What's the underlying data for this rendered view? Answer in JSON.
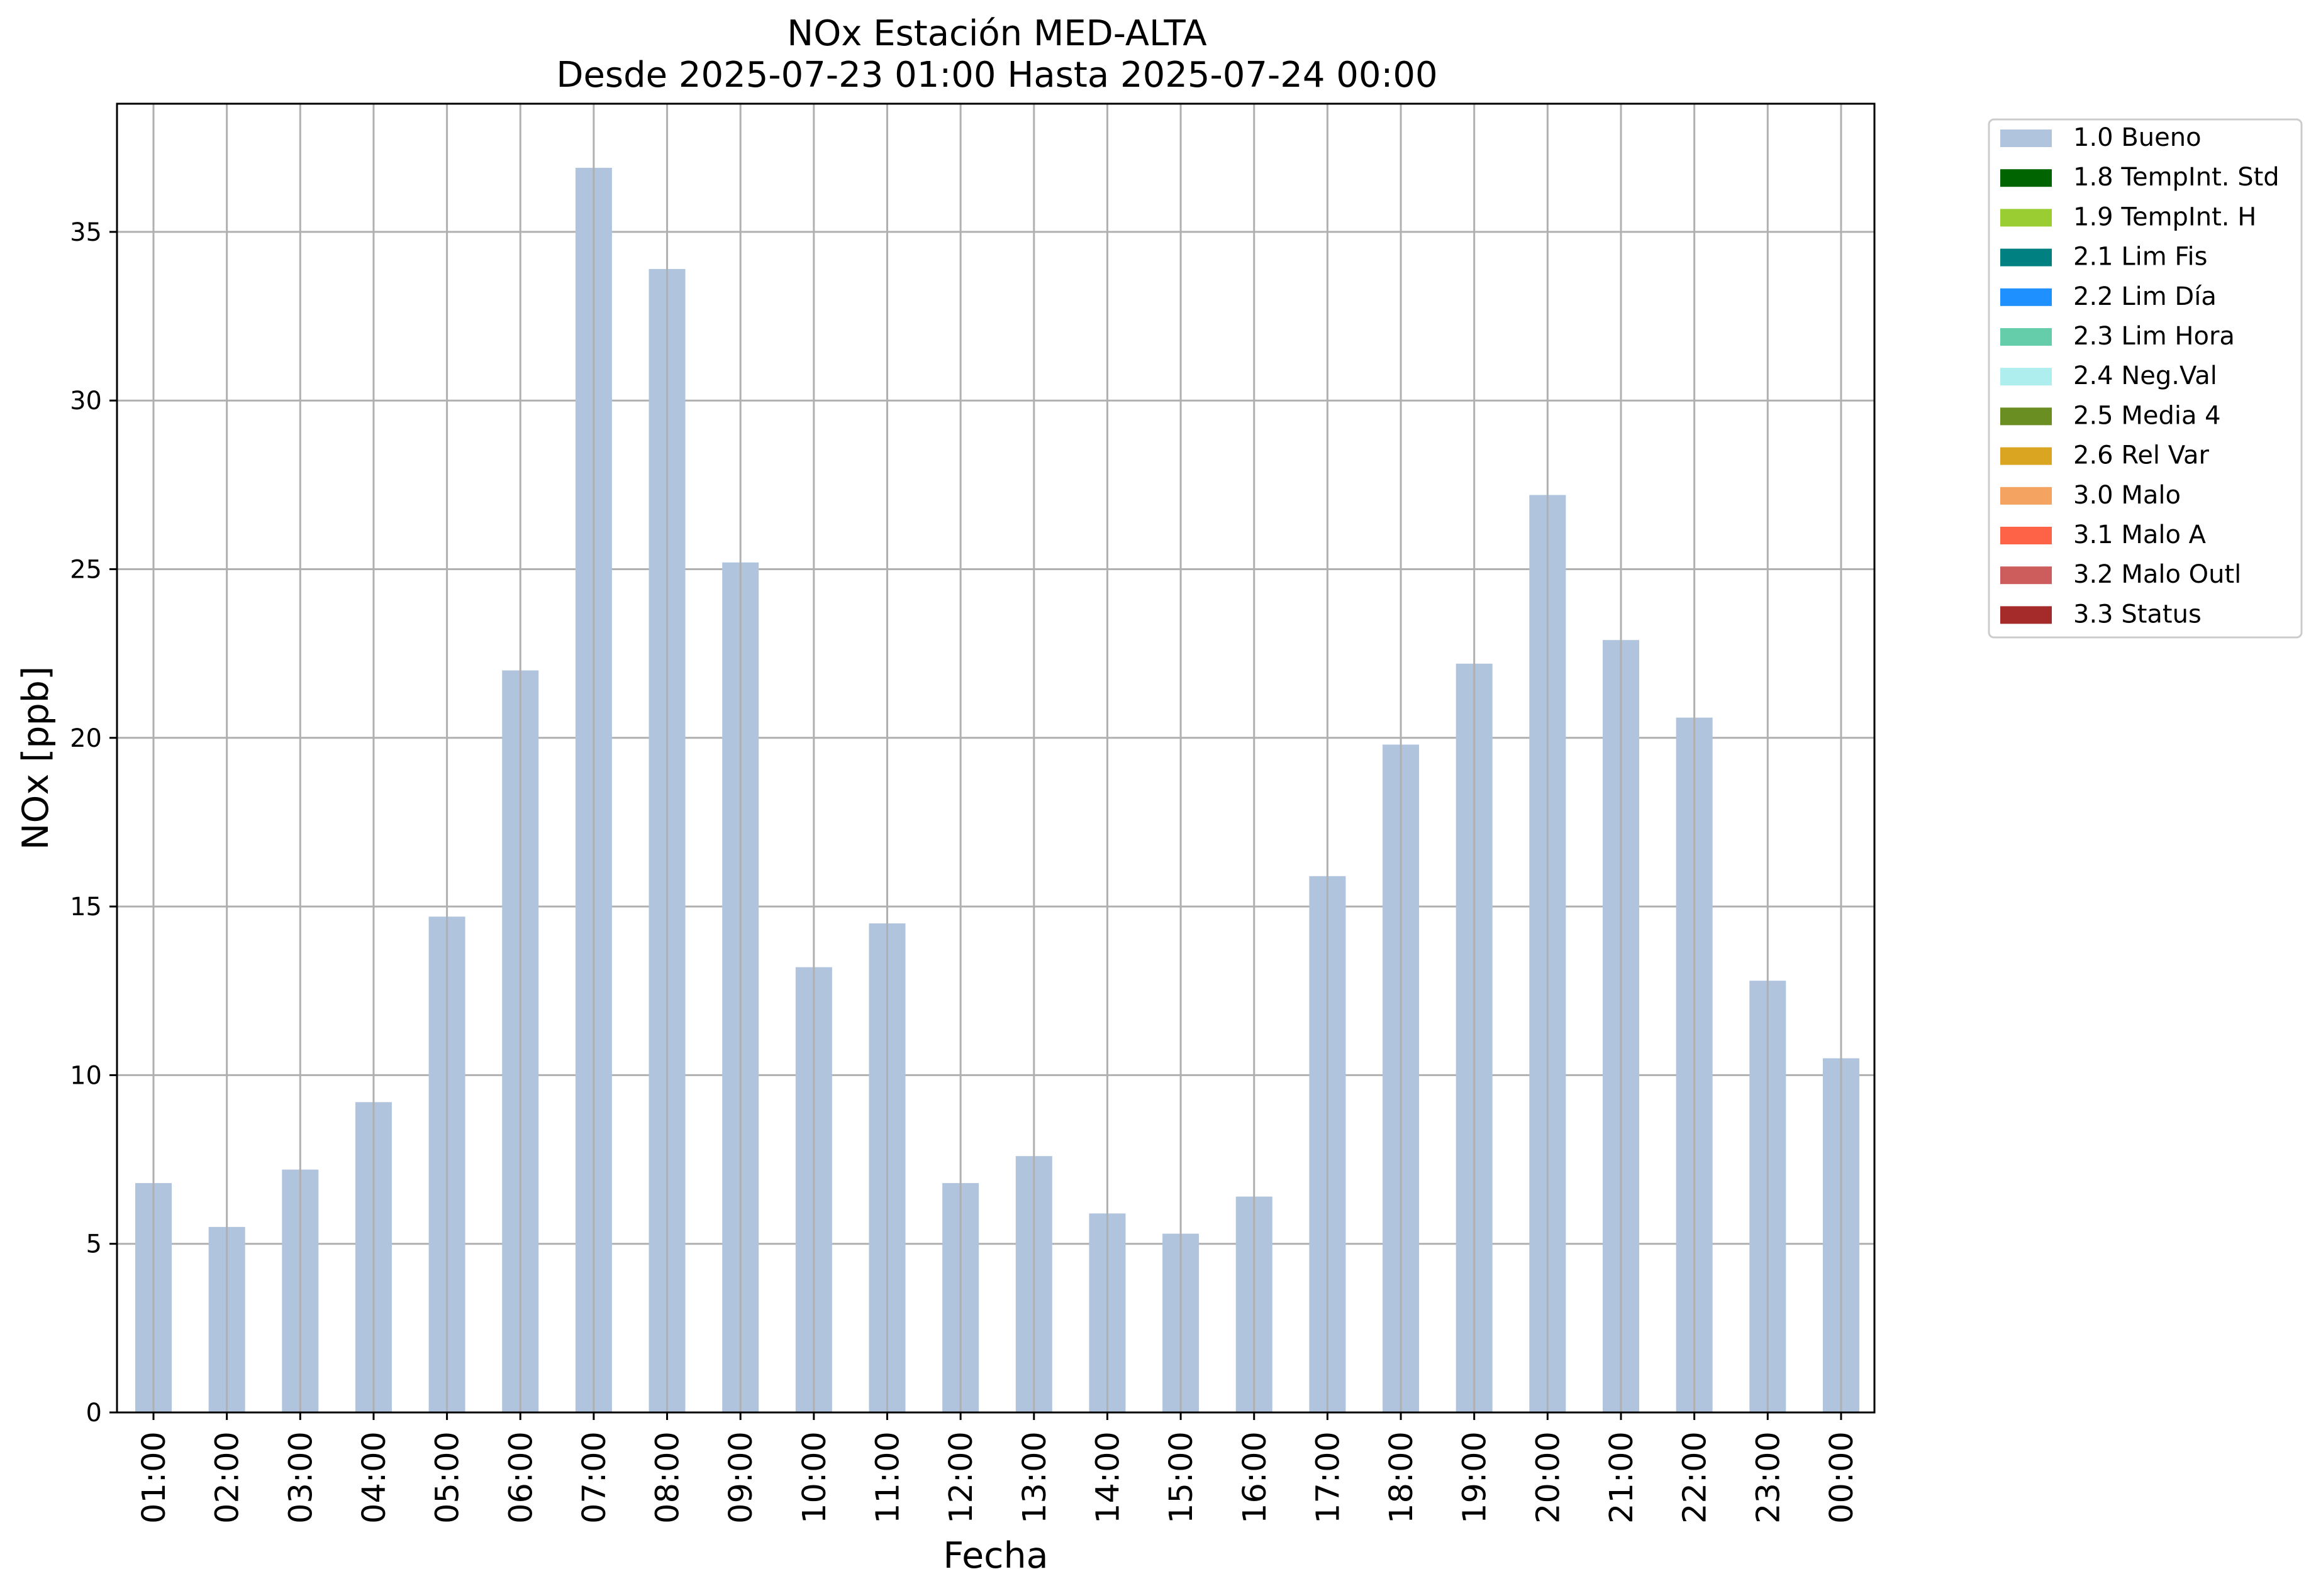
{
  "chart_data": {
    "type": "bar",
    "title": "NOx Estación MED-ALTA",
    "subtitle": "Desde 2025-07-23 01:00 Hasta 2025-07-24 00:00",
    "xlabel": "Fecha",
    "ylabel": "NOx [ppb]",
    "ylim": [
      0,
      38.8
    ],
    "yticks": [
      0,
      5,
      10,
      15,
      20,
      25,
      30,
      35
    ],
    "grid": true,
    "legend_position": "outside-top-right",
    "categories": [
      "01:00",
      "02:00",
      "03:00",
      "04:00",
      "05:00",
      "06:00",
      "07:00",
      "08:00",
      "09:00",
      "10:00",
      "11:00",
      "12:00",
      "13:00",
      "14:00",
      "15:00",
      "16:00",
      "17:00",
      "18:00",
      "19:00",
      "20:00",
      "21:00",
      "22:00",
      "23:00",
      "00:00"
    ],
    "series": [
      {
        "name": "1.0 Bueno",
        "color": "#b0c4de",
        "values": [
          6.8,
          5.5,
          7.2,
          9.2,
          14.7,
          22.0,
          36.9,
          33.9,
          25.2,
          13.2,
          14.5,
          6.8,
          7.6,
          5.9,
          5.3,
          6.4,
          15.9,
          19.8,
          22.2,
          27.2,
          22.9,
          20.6,
          12.8,
          10.5
        ]
      }
    ],
    "legend": [
      {
        "label": "1.0 Bueno",
        "color": "#b0c4de"
      },
      {
        "label": "1.8 TempInt. Std",
        "color": "#006400"
      },
      {
        "label": "1.9 TempInt. H",
        "color": "#9acd32"
      },
      {
        "label": "2.1 Lim Fis",
        "color": "#008080"
      },
      {
        "label": "2.2 Lim Día",
        "color": "#1e90ff"
      },
      {
        "label": "2.3 Lim Hora",
        "color": "#66cdaa"
      },
      {
        "label": "2.4 Neg.Val",
        "color": "#afeeee"
      },
      {
        "label": "2.5 Media 4",
        "color": "#6b8e23"
      },
      {
        "label": "2.6 Rel Var",
        "color": "#daa520"
      },
      {
        "label": "3.0 Malo",
        "color": "#f4a460"
      },
      {
        "label": "3.1 Malo A",
        "color": "#ff6347"
      },
      {
        "label": "3.2 Malo Outl",
        "color": "#cd5c5c"
      },
      {
        "label": "3.3 Status",
        "color": "#a52a2a"
      }
    ]
  }
}
